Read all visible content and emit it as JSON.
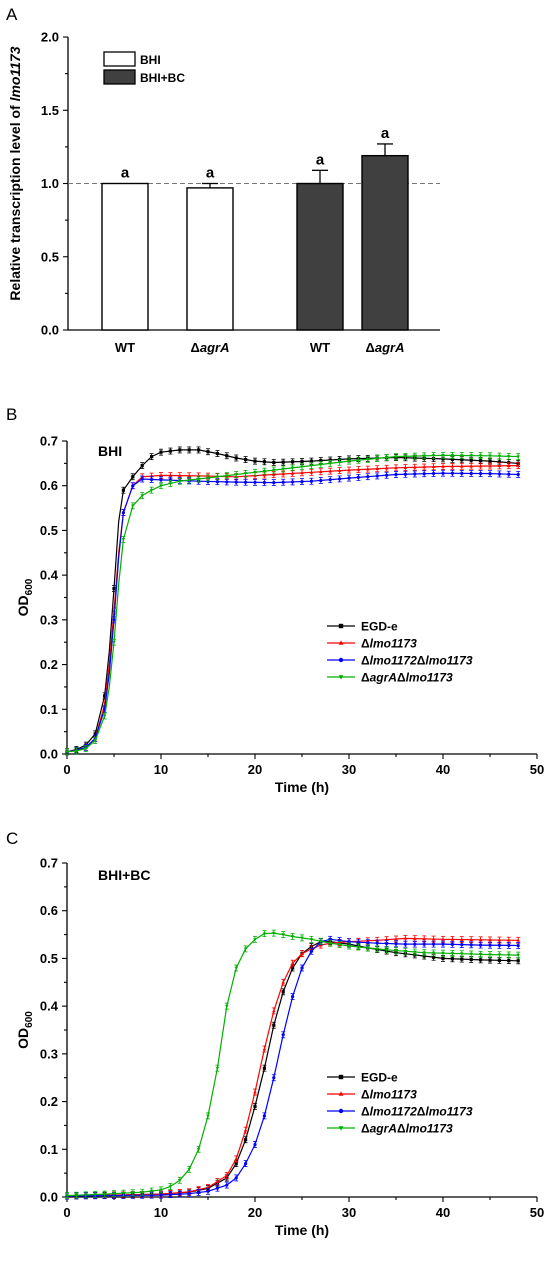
{
  "panels": [
    {
      "letter": "A"
    },
    {
      "letter": "B"
    },
    {
      "letter": "C"
    }
  ],
  "chart_data": [
    {
      "type": "bar",
      "panel": "A",
      "ylabel_prefix": "Relative transcription level of ",
      "ylabel_gene": "lmo1173",
      "ylim": [
        0,
        2.0
      ],
      "yticks": [
        0.0,
        0.5,
        1.0,
        1.5,
        2.0
      ],
      "reference_line": 1.0,
      "categories": [
        {
          "label": "WT",
          "italic_part": "",
          "prefix": "",
          "condition": "BHI",
          "value": 1.0,
          "error": 0.0,
          "sig": "a"
        },
        {
          "label": "",
          "italic_part": "agrA",
          "prefix": "Δ",
          "condition": "BHI",
          "value": 0.97,
          "error": 0.03,
          "sig": "a"
        },
        {
          "label": "WT",
          "italic_part": "",
          "prefix": "",
          "condition": "BHI+BC",
          "value": 1.0,
          "error": 0.09,
          "sig": "a"
        },
        {
          "label": "",
          "italic_part": "agrA",
          "prefix": "Δ",
          "condition": "BHI+BC",
          "value": 1.19,
          "error": 0.08,
          "sig": "a"
        }
      ],
      "legend": [
        {
          "name": "BHI",
          "color": "#ffffff"
        },
        {
          "name": "BHI+BC",
          "color": "#404040"
        }
      ]
    },
    {
      "type": "line",
      "panel": "B",
      "title": "BHI",
      "xlabel": "Time (h)",
      "ylabel_main": "OD",
      "ylabel_sub": "600",
      "xlim": [
        0,
        50
      ],
      "ylim": [
        0,
        0.7
      ],
      "xticks": [
        0,
        10,
        20,
        30,
        40,
        50
      ],
      "yticks": [
        0.0,
        0.1,
        0.2,
        0.3,
        0.4,
        0.5,
        0.6,
        0.7
      ],
      "series": [
        {
          "name": "EGD-e",
          "prefix": "",
          "color": "#000000",
          "marker": "square",
          "points": [
            [
              0,
              0.005
            ],
            [
              1,
              0.01
            ],
            [
              2,
              0.02
            ],
            [
              3,
              0.045
            ],
            [
              4,
              0.13
            ],
            [
              4.5,
              0.23
            ],
            [
              5,
              0.37
            ],
            [
              5.5,
              0.52
            ],
            [
              6,
              0.59
            ],
            [
              7,
              0.62
            ],
            [
              8,
              0.645
            ],
            [
              9,
              0.665
            ],
            [
              10,
              0.675
            ],
            [
              12,
              0.68
            ],
            [
              14,
              0.68
            ],
            [
              16,
              0.672
            ],
            [
              18,
              0.662
            ],
            [
              20,
              0.655
            ],
            [
              22,
              0.652
            ],
            [
              26,
              0.655
            ],
            [
              30,
              0.66
            ],
            [
              35,
              0.663
            ],
            [
              40,
              0.66
            ],
            [
              45,
              0.655
            ],
            [
              48,
              0.65
            ]
          ]
        },
        {
          "name": "lmo1173",
          "prefix": "Δ",
          "color": "#ff0000",
          "marker": "triangle",
          "points": [
            [
              0,
              0.005
            ],
            [
              1,
              0.008
            ],
            [
              2,
              0.015
            ],
            [
              3,
              0.035
            ],
            [
              4,
              0.11
            ],
            [
              4.5,
              0.2
            ],
            [
              5,
              0.32
            ],
            [
              5.5,
              0.45
            ],
            [
              6,
              0.54
            ],
            [
              7,
              0.6
            ],
            [
              8,
              0.62
            ],
            [
              10,
              0.623
            ],
            [
              14,
              0.622
            ],
            [
              18,
              0.62
            ],
            [
              22,
              0.625
            ],
            [
              26,
              0.63
            ],
            [
              30,
              0.635
            ],
            [
              35,
              0.64
            ],
            [
              40,
              0.643
            ],
            [
              45,
              0.644
            ],
            [
              48,
              0.645
            ]
          ]
        },
        {
          "name": "lmo1172Δlmo1173",
          "prefix": "Δ",
          "color": "#0000ff",
          "marker": "circle",
          "points": [
            [
              0,
              0.005
            ],
            [
              1,
              0.008
            ],
            [
              2,
              0.015
            ],
            [
              3,
              0.035
            ],
            [
              4,
              0.1
            ],
            [
              4.5,
              0.18
            ],
            [
              5,
              0.3
            ],
            [
              5.5,
              0.44
            ],
            [
              6,
              0.54
            ],
            [
              7,
              0.6
            ],
            [
              8,
              0.615
            ],
            [
              10,
              0.613
            ],
            [
              14,
              0.61
            ],
            [
              18,
              0.608
            ],
            [
              22,
              0.607
            ],
            [
              26,
              0.61
            ],
            [
              30,
              0.617
            ],
            [
              35,
              0.625
            ],
            [
              40,
              0.628
            ],
            [
              45,
              0.627
            ],
            [
              48,
              0.625
            ]
          ]
        },
        {
          "name": "agrAΔlmo1173",
          "prefix": "Δ",
          "color": "#00b000",
          "marker": "triangle-down",
          "points": [
            [
              0,
              0.005
            ],
            [
              1,
              0.007
            ],
            [
              2,
              0.012
            ],
            [
              3,
              0.03
            ],
            [
              4,
              0.085
            ],
            [
              4.5,
              0.15
            ],
            [
              5,
              0.25
            ],
            [
              5.5,
              0.38
            ],
            [
              6,
              0.48
            ],
            [
              7,
              0.555
            ],
            [
              8,
              0.578
            ],
            [
              9,
              0.59
            ],
            [
              10,
              0.6
            ],
            [
              12,
              0.61
            ],
            [
              14,
              0.615
            ],
            [
              18,
              0.625
            ],
            [
              22,
              0.635
            ],
            [
              26,
              0.645
            ],
            [
              30,
              0.655
            ],
            [
              35,
              0.665
            ],
            [
              40,
              0.668
            ],
            [
              45,
              0.667
            ],
            [
              48,
              0.665
            ]
          ]
        }
      ]
    },
    {
      "type": "line",
      "panel": "C",
      "title": "BHI+BC",
      "xlabel": "Time (h)",
      "ylabel_main": "OD",
      "ylabel_sub": "600",
      "xlim": [
        0,
        50
      ],
      "ylim": [
        0,
        0.7
      ],
      "xticks": [
        0,
        10,
        20,
        30,
        40,
        50
      ],
      "yticks": [
        0.0,
        0.1,
        0.2,
        0.3,
        0.4,
        0.5,
        0.6,
        0.7
      ],
      "series": [
        {
          "name": "EGD-e",
          "prefix": "",
          "color": "#000000",
          "marker": "square",
          "points": [
            [
              0,
              0.002
            ],
            [
              5,
              0.004
            ],
            [
              10,
              0.006
            ],
            [
              13,
              0.01
            ],
            [
              15,
              0.018
            ],
            [
              17,
              0.04
            ],
            [
              18,
              0.07
            ],
            [
              19,
              0.12
            ],
            [
              20,
              0.19
            ],
            [
              21,
              0.27
            ],
            [
              22,
              0.36
            ],
            [
              23,
              0.43
            ],
            [
              24,
              0.48
            ],
            [
              25,
              0.51
            ],
            [
              26,
              0.525
            ],
            [
              27,
              0.535
            ],
            [
              28,
              0.535
            ],
            [
              30,
              0.53
            ],
            [
              32,
              0.522
            ],
            [
              35,
              0.512
            ],
            [
              38,
              0.505
            ],
            [
              40,
              0.5
            ],
            [
              44,
              0.497
            ],
            [
              48,
              0.495
            ]
          ]
        },
        {
          "name": "lmo1173",
          "prefix": "Δ",
          "color": "#ff0000",
          "marker": "triangle",
          "points": [
            [
              0,
              0.002
            ],
            [
              5,
              0.004
            ],
            [
              10,
              0.006
            ],
            [
              13,
              0.011
            ],
            [
              15,
              0.02
            ],
            [
              17,
              0.045
            ],
            [
              18,
              0.08
            ],
            [
              19,
              0.14
            ],
            [
              20,
              0.22
            ],
            [
              21,
              0.31
            ],
            [
              22,
              0.39
            ],
            [
              23,
              0.45
            ],
            [
              24,
              0.49
            ],
            [
              25,
              0.51
            ],
            [
              26,
              0.52
            ],
            [
              27,
              0.528
            ],
            [
              28,
              0.532
            ],
            [
              30,
              0.535
            ],
            [
              33,
              0.538
            ],
            [
              36,
              0.542
            ],
            [
              40,
              0.54
            ],
            [
              44,
              0.539
            ],
            [
              48,
              0.538
            ]
          ]
        },
        {
          "name": "lmo1172Δlmo1173",
          "prefix": "Δ",
          "color": "#0000ff",
          "marker": "circle",
          "points": [
            [
              0,
              0.002
            ],
            [
              5,
              0.003
            ],
            [
              10,
              0.004
            ],
            [
              13,
              0.007
            ],
            [
              15,
              0.012
            ],
            [
              17,
              0.025
            ],
            [
              18,
              0.04
            ],
            [
              19,
              0.07
            ],
            [
              20,
              0.11
            ],
            [
              21,
              0.17
            ],
            [
              22,
              0.25
            ],
            [
              23,
              0.34
            ],
            [
              24,
              0.42
            ],
            [
              25,
              0.48
            ],
            [
              26,
              0.515
            ],
            [
              27,
              0.535
            ],
            [
              28,
              0.54
            ],
            [
              30,
              0.535
            ],
            [
              33,
              0.532
            ],
            [
              36,
              0.53
            ],
            [
              40,
              0.53
            ],
            [
              44,
              0.528
            ],
            [
              48,
              0.527
            ]
          ]
        },
        {
          "name": "agrAΔlmo1173",
          "prefix": "Δ",
          "color": "#00b000",
          "marker": "triangle-down",
          "points": [
            [
              0,
              0.003
            ],
            [
              4,
              0.006
            ],
            [
              8,
              0.01
            ],
            [
              10,
              0.015
            ],
            [
              11,
              0.022
            ],
            [
              12,
              0.035
            ],
            [
              13,
              0.058
            ],
            [
              14,
              0.1
            ],
            [
              15,
              0.17
            ],
            [
              16,
              0.27
            ],
            [
              17,
              0.4
            ],
            [
              18,
              0.48
            ],
            [
              19,
              0.52
            ],
            [
              20,
              0.54
            ],
            [
              21,
              0.552
            ],
            [
              22,
              0.553
            ],
            [
              23,
              0.55
            ],
            [
              24,
              0.546
            ],
            [
              26,
              0.54
            ],
            [
              28,
              0.532
            ],
            [
              30,
              0.526
            ],
            [
              34,
              0.518
            ],
            [
              38,
              0.512
            ],
            [
              42,
              0.51
            ],
            [
              45,
              0.508
            ],
            [
              48,
              0.507
            ]
          ]
        }
      ]
    }
  ]
}
